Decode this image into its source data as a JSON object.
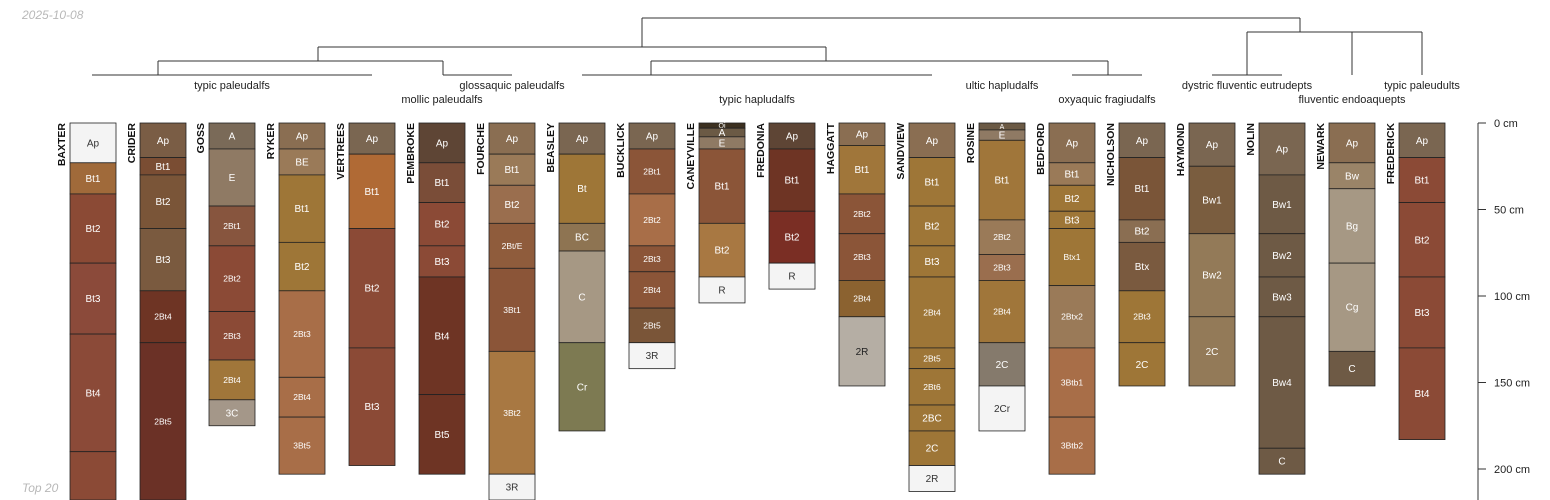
{
  "meta": {
    "date": "2025-10-08",
    "footer": "Top 20"
  },
  "depth_axis": {
    "unit": "cm",
    "labels": [
      "0 cm",
      "50 cm",
      "100 cm",
      "150 cm",
      "200 cm"
    ],
    "values": [
      0,
      50,
      100,
      150,
      200
    ]
  },
  "taxa_labels": [
    "typic paleudalfs",
    "glossaquic paleudalfs",
    "mollic paleudalfs",
    "typic hapludalfs",
    "ultic hapludalfs",
    "oxyaquic fragiudalfs",
    "dystric fluventic eutrudepts",
    "fluventic endoaquepts",
    "typic paleudults"
  ],
  "profiles": [
    {
      "name": "BAXTER",
      "horizons": [
        {
          "label": "Ap",
          "top": 0,
          "bottom": 23,
          "color": "#f4f4f4",
          "text": "#333333"
        },
        {
          "label": "Bt1",
          "top": 23,
          "bottom": 41,
          "color": "#a06a3a"
        },
        {
          "label": "Bt2",
          "top": 41,
          "bottom": 81,
          "color": "#8b4a35"
        },
        {
          "label": "Bt3",
          "top": 81,
          "bottom": 122,
          "color": "#8b4a3a"
        },
        {
          "label": "Bt4",
          "top": 122,
          "bottom": 190,
          "color": "#8b4a38"
        },
        {
          "label": "",
          "top": 190,
          "bottom": 220,
          "color": "#8b4a36"
        }
      ]
    },
    {
      "name": "CRIDER",
      "horizons": [
        {
          "label": "Ap",
          "top": 0,
          "bottom": 20,
          "color": "#7a5d45"
        },
        {
          "label": "Bt1",
          "top": 20,
          "bottom": 30,
          "color": "#7a4d33"
        },
        {
          "label": "Bt2",
          "top": 30,
          "bottom": 61,
          "color": "#7a5538"
        },
        {
          "label": "Bt3",
          "top": 61,
          "bottom": 97,
          "color": "#7a5a3f"
        },
        {
          "label": "2Bt4",
          "top": 97,
          "bottom": 127,
          "color": "#6e3424"
        },
        {
          "label": "2Bt5",
          "top": 127,
          "bottom": 220,
          "color": "#6b3126"
        }
      ]
    },
    {
      "name": "GOSS",
      "horizons": [
        {
          "label": "A",
          "top": 0,
          "bottom": 15,
          "color": "#7a6a58"
        },
        {
          "label": "E",
          "top": 15,
          "bottom": 48,
          "color": "#8f7a64"
        },
        {
          "label": "2Bt1",
          "top": 48,
          "bottom": 71,
          "color": "#87553e"
        },
        {
          "label": "2Bt2",
          "top": 71,
          "bottom": 109,
          "color": "#8b4a36"
        },
        {
          "label": "2Bt3",
          "top": 109,
          "bottom": 137,
          "color": "#8b4a36"
        },
        {
          "label": "2Bt4",
          "top": 137,
          "bottom": 160,
          "color": "#a0763a"
        },
        {
          "label": "3C",
          "top": 160,
          "bottom": 175,
          "color": "#a49789"
        }
      ]
    },
    {
      "name": "RYKER",
      "horizons": [
        {
          "label": "Ap",
          "top": 0,
          "bottom": 15,
          "color": "#8a6e52"
        },
        {
          "label": "BE",
          "top": 15,
          "bottom": 30,
          "color": "#9a7a58"
        },
        {
          "label": "Bt1",
          "top": 30,
          "bottom": 69,
          "color": "#9e7637"
        },
        {
          "label": "Bt2",
          "top": 69,
          "bottom": 97,
          "color": "#9e7637"
        },
        {
          "label": "2Bt3",
          "top": 97,
          "bottom": 147,
          "color": "#a86e48"
        },
        {
          "label": "2Bt4",
          "top": 147,
          "bottom": 170,
          "color": "#a86e48"
        },
        {
          "label": "3Bt5",
          "top": 170,
          "bottom": 203,
          "color": "#a86e48"
        }
      ]
    },
    {
      "name": "VERTREES",
      "horizons": [
        {
          "label": "Ap",
          "top": 0,
          "bottom": 18,
          "color": "#7a6651"
        },
        {
          "label": "Bt1",
          "top": 18,
          "bottom": 61,
          "color": "#b06a35"
        },
        {
          "label": "Bt2",
          "top": 61,
          "bottom": 130,
          "color": "#8b4a36"
        },
        {
          "label": "Bt3",
          "top": 130,
          "bottom": 198,
          "color": "#8b4a36"
        }
      ]
    },
    {
      "name": "PEMBROKE",
      "horizons": [
        {
          "label": "Ap",
          "top": 0,
          "bottom": 23,
          "color": "#5e4535"
        },
        {
          "label": "Bt1",
          "top": 23,
          "bottom": 46,
          "color": "#7a4d38"
        },
        {
          "label": "Bt2",
          "top": 46,
          "bottom": 71,
          "color": "#8b4a36"
        },
        {
          "label": "Bt3",
          "top": 71,
          "bottom": 89,
          "color": "#8b4a36"
        },
        {
          "label": "Bt4",
          "top": 89,
          "bottom": 157,
          "color": "#6e3424"
        },
        {
          "label": "Bt5",
          "top": 157,
          "bottom": 203,
          "color": "#6e3424"
        }
      ]
    },
    {
      "name": "FOURCHE",
      "horizons": [
        {
          "label": "Ap",
          "top": 0,
          "bottom": 18,
          "color": "#8a6e52"
        },
        {
          "label": "Bt1",
          "top": 18,
          "bottom": 36,
          "color": "#9a7a58"
        },
        {
          "label": "Bt2",
          "top": 36,
          "bottom": 58,
          "color": "#9a6e4e"
        },
        {
          "label": "2Bt/E",
          "top": 58,
          "bottom": 84,
          "color": "#8f5c3c"
        },
        {
          "label": "3Bt1",
          "top": 84,
          "bottom": 132,
          "color": "#8b5538"
        },
        {
          "label": "3Bt2",
          "top": 132,
          "bottom": 203,
          "color": "#a87842"
        },
        {
          "label": "3R",
          "top": 203,
          "bottom": 218,
          "color": "#f4f4f4",
          "text": "#333333"
        }
      ]
    },
    {
      "name": "BEASLEY",
      "horizons": [
        {
          "label": "Ap",
          "top": 0,
          "bottom": 18,
          "color": "#7a6651"
        },
        {
          "label": "Bt",
          "top": 18,
          "bottom": 58,
          "color": "#9e7637"
        },
        {
          "label": "BC",
          "top": 58,
          "bottom": 74,
          "color": "#8e7452"
        },
        {
          "label": "C",
          "top": 74,
          "bottom": 127,
          "color": "#a69884"
        },
        {
          "label": "Cr",
          "top": 127,
          "bottom": 178,
          "color": "#7d7a52"
        }
      ]
    },
    {
      "name": "BUCKLICK",
      "horizons": [
        {
          "label": "Ap",
          "top": 0,
          "bottom": 15,
          "color": "#7a6651"
        },
        {
          "label": "2Bt1",
          "top": 15,
          "bottom": 41,
          "color": "#8b5538"
        },
        {
          "label": "2Bt2",
          "top": 41,
          "bottom": 71,
          "color": "#a86e48"
        },
        {
          "label": "2Bt3",
          "top": 71,
          "bottom": 86,
          "color": "#8b5538"
        },
        {
          "label": "2Bt4",
          "top": 86,
          "bottom": 107,
          "color": "#8b5538"
        },
        {
          "label": "2Bt5",
          "top": 107,
          "bottom": 127,
          "color": "#7a5538"
        },
        {
          "label": "3R",
          "top": 127,
          "bottom": 142,
          "color": "#f4f4f4",
          "text": "#333333"
        }
      ]
    },
    {
      "name": "CANEYVILLE",
      "horizons": [
        {
          "label": "Oi",
          "top": 0,
          "bottom": 3,
          "color": "#3c3020"
        },
        {
          "label": "A",
          "top": 3,
          "bottom": 8,
          "color": "#6b5a45"
        },
        {
          "label": "E",
          "top": 8,
          "bottom": 15,
          "color": "#8f7a64"
        },
        {
          "label": "Bt1",
          "top": 15,
          "bottom": 58,
          "color": "#8b5538"
        },
        {
          "label": "Bt2",
          "top": 58,
          "bottom": 89,
          "color": "#a87842"
        },
        {
          "label": "R",
          "top": 89,
          "bottom": 104,
          "color": "#f4f4f4",
          "text": "#333333"
        }
      ]
    },
    {
      "name": "FREDONIA",
      "horizons": [
        {
          "label": "Ap",
          "top": 0,
          "bottom": 15,
          "color": "#5e4535"
        },
        {
          "label": "Bt1",
          "top": 15,
          "bottom": 51,
          "color": "#6e3424"
        },
        {
          "label": "Bt2",
          "top": 51,
          "bottom": 81,
          "color": "#7a2e24"
        },
        {
          "label": "R",
          "top": 81,
          "bottom": 96,
          "color": "#f4f4f4",
          "text": "#333333"
        }
      ]
    },
    {
      "name": "HAGGATT",
      "horizons": [
        {
          "label": "Ap",
          "top": 0,
          "bottom": 13,
          "color": "#8a6e52"
        },
        {
          "label": "Bt1",
          "top": 13,
          "bottom": 41,
          "color": "#a0763a"
        },
        {
          "label": "2Bt2",
          "top": 41,
          "bottom": 64,
          "color": "#8b5538"
        },
        {
          "label": "2Bt3",
          "top": 64,
          "bottom": 91,
          "color": "#8b5538"
        },
        {
          "label": "2Bt4",
          "top": 91,
          "bottom": 112,
          "color": "#8b6230"
        },
        {
          "label": "2R",
          "top": 112,
          "bottom": 152,
          "color": "#b5aea4",
          "text": "#222222"
        }
      ]
    },
    {
      "name": "SANDVIEW",
      "horizons": [
        {
          "label": "Ap",
          "top": 0,
          "bottom": 20,
          "color": "#8a6e52"
        },
        {
          "label": "Bt1",
          "top": 20,
          "bottom": 48,
          "color": "#9e7637"
        },
        {
          "label": "Bt2",
          "top": 48,
          "bottom": 71,
          "color": "#9e7637"
        },
        {
          "label": "Bt3",
          "top": 71,
          "bottom": 89,
          "color": "#9e7637"
        },
        {
          "label": "2Bt4",
          "top": 89,
          "bottom": 130,
          "color": "#9e7637"
        },
        {
          "label": "2Bt5",
          "top": 130,
          "bottom": 142,
          "color": "#9e7637"
        },
        {
          "label": "2Bt6",
          "top": 142,
          "bottom": 163,
          "color": "#9e7637"
        },
        {
          "label": "2BC",
          "top": 163,
          "bottom": 178,
          "color": "#9e7637"
        },
        {
          "label": "2C",
          "top": 178,
          "bottom": 198,
          "color": "#9e7637"
        },
        {
          "label": "2R",
          "top": 198,
          "bottom": 213,
          "color": "#f4f4f4",
          "text": "#333333"
        }
      ]
    },
    {
      "name": "ROSINE",
      "horizons": [
        {
          "label": "A",
          "top": 0,
          "bottom": 4,
          "color": "#6b5a45"
        },
        {
          "label": "E",
          "top": 4,
          "bottom": 10,
          "color": "#8f7a64"
        },
        {
          "label": "Bt1",
          "top": 10,
          "bottom": 56,
          "color": "#a0763a"
        },
        {
          "label": "2Bt2",
          "top": 56,
          "bottom": 76,
          "color": "#9a7a58"
        },
        {
          "label": "2Bt3",
          "top": 76,
          "bottom": 91,
          "color": "#9a6e4e"
        },
        {
          "label": "2Bt4",
          "top": 91,
          "bottom": 127,
          "color": "#a0763a"
        },
        {
          "label": "2C",
          "top": 127,
          "bottom": 152,
          "color": "#857a6c"
        },
        {
          "label": "2Cr",
          "top": 152,
          "bottom": 178,
          "color": "#f4f4f4",
          "text": "#333333"
        }
      ]
    },
    {
      "name": "BEDFORD",
      "horizons": [
        {
          "label": "Ap",
          "top": 0,
          "bottom": 23,
          "color": "#8a6e52"
        },
        {
          "label": "Bt1",
          "top": 23,
          "bottom": 36,
          "color": "#9a7a58"
        },
        {
          "label": "Bt2",
          "top": 36,
          "bottom": 51,
          "color": "#9e7637"
        },
        {
          "label": "Bt3",
          "top": 51,
          "bottom": 61,
          "color": "#9e7637"
        },
        {
          "label": "Btx1",
          "top": 61,
          "bottom": 94,
          "color": "#9e7637"
        },
        {
          "label": "2Btx2",
          "top": 94,
          "bottom": 130,
          "color": "#9a7a58"
        },
        {
          "label": "3Btb1",
          "top": 130,
          "bottom": 170,
          "color": "#a86e48"
        },
        {
          "label": "3Btb2",
          "top": 170,
          "bottom": 203,
          "color": "#a86e48"
        }
      ]
    },
    {
      "name": "NICHOLSON",
      "horizons": [
        {
          "label": "Ap",
          "top": 0,
          "bottom": 20,
          "color": "#7a6651"
        },
        {
          "label": "Bt1",
          "top": 20,
          "bottom": 56,
          "color": "#7a5538"
        },
        {
          "label": "Bt2",
          "top": 56,
          "bottom": 69,
          "color": "#8a6e52"
        },
        {
          "label": "Btx",
          "top": 69,
          "bottom": 97,
          "color": "#7a5a3f"
        },
        {
          "label": "2Bt3",
          "top": 97,
          "bottom": 127,
          "color": "#9e7637"
        },
        {
          "label": "2C",
          "top": 127,
          "bottom": 152,
          "color": "#9e7637"
        }
      ]
    },
    {
      "name": "HAYMOND",
      "horizons": [
        {
          "label": "Ap",
          "top": 0,
          "bottom": 25,
          "color": "#7a6651"
        },
        {
          "label": "Bw1",
          "top": 25,
          "bottom": 64,
          "color": "#7a5d3f"
        },
        {
          "label": "Bw2",
          "top": 64,
          "bottom": 112,
          "color": "#937a58"
        },
        {
          "label": "2C",
          "top": 112,
          "bottom": 152,
          "color": "#937a58"
        }
      ]
    },
    {
      "name": "NOLIN",
      "horizons": [
        {
          "label": "Ap",
          "top": 0,
          "bottom": 30,
          "color": "#7a6651"
        },
        {
          "label": "Bw1",
          "top": 30,
          "bottom": 64,
          "color": "#6e5a45"
        },
        {
          "label": "Bw2",
          "top": 64,
          "bottom": 89,
          "color": "#6e5a45"
        },
        {
          "label": "Bw3",
          "top": 89,
          "bottom": 112,
          "color": "#6e5a45"
        },
        {
          "label": "Bw4",
          "top": 112,
          "bottom": 188,
          "color": "#6e5a45"
        },
        {
          "label": "C",
          "top": 188,
          "bottom": 203,
          "color": "#6e5a45"
        }
      ]
    },
    {
      "name": "NEWARK",
      "horizons": [
        {
          "label": "Ap",
          "top": 0,
          "bottom": 23,
          "color": "#8a6e52"
        },
        {
          "label": "Bw",
          "top": 23,
          "bottom": 38,
          "color": "#9a8468"
        },
        {
          "label": "Bg",
          "top": 38,
          "bottom": 81,
          "color": "#a69884"
        },
        {
          "label": "Cg",
          "top": 81,
          "bottom": 132,
          "color": "#a69884"
        },
        {
          "label": "C",
          "top": 132,
          "bottom": 152,
          "color": "#6e5a45"
        }
      ]
    },
    {
      "name": "FREDERICK",
      "horizons": [
        {
          "label": "Ap",
          "top": 0,
          "bottom": 20,
          "color": "#7a6651"
        },
        {
          "label": "Bt1",
          "top": 20,
          "bottom": 46,
          "color": "#8b4a36"
        },
        {
          "label": "Bt2",
          "top": 46,
          "bottom": 89,
          "color": "#8b4a36"
        },
        {
          "label": "Bt3",
          "top": 89,
          "bottom": 130,
          "color": "#8b4a36"
        },
        {
          "label": "Bt4",
          "top": 130,
          "bottom": 183,
          "color": "#8b4a36"
        }
      ]
    }
  ]
}
